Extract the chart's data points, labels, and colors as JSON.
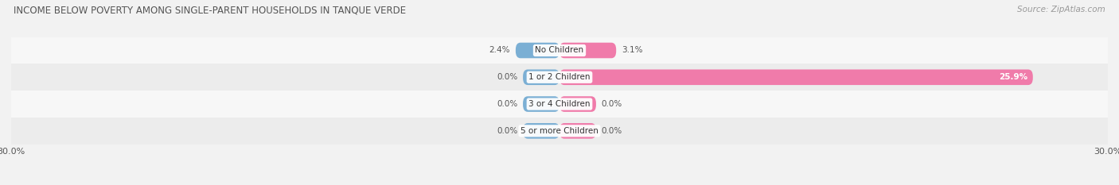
{
  "title": "INCOME BELOW POVERTY AMONG SINGLE-PARENT HOUSEHOLDS IN TANQUE VERDE",
  "source": "Source: ZipAtlas.com",
  "categories": [
    "No Children",
    "1 or 2 Children",
    "3 or 4 Children",
    "5 or more Children"
  ],
  "single_father": [
    2.4,
    0.0,
    0.0,
    0.0
  ],
  "single_mother": [
    3.1,
    25.9,
    0.0,
    0.0
  ],
  "father_color": "#7bafd4",
  "mother_color": "#f07baa",
  "x_min": -30.0,
  "x_max": 30.0,
  "bar_height": 0.58,
  "background_color": "#f2f2f2",
  "row_bg_light": "#f7f7f7",
  "row_bg_dark": "#ececec",
  "title_color": "#555555",
  "source_color": "#999999",
  "label_color": "#555555",
  "figsize": [
    14.06,
    2.33
  ],
  "dpi": 100,
  "stub_size": 2.0,
  "cat_fontsize": 7.5,
  "val_fontsize": 7.5,
  "title_fontsize": 8.5,
  "source_fontsize": 7.5,
  "legend_fontsize": 8.0,
  "tick_fontsize": 8.0
}
